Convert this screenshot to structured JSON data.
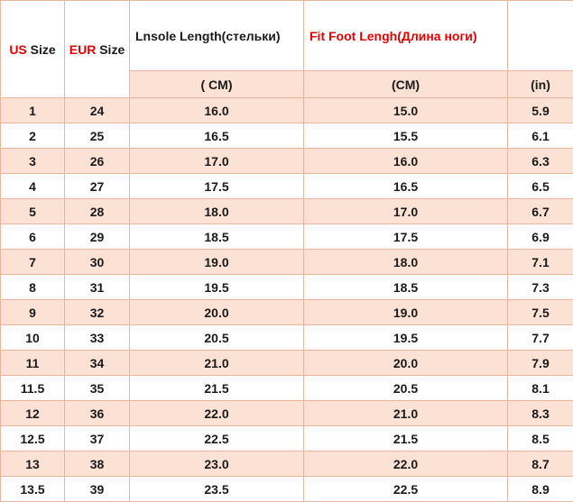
{
  "header": {
    "columns": [
      {
        "highlight": "US",
        "label": "Size"
      },
      {
        "highlight": "EUR",
        "label": "Size"
      },
      {
        "label": "Lnsole Length(стельки)"
      },
      {
        "highlight": "Fit Foot Lengh(Длина ноги)"
      },
      {}
    ],
    "units": [
      "( CM)",
      "(CM)",
      "(in)"
    ]
  },
  "table": {
    "rows": [
      [
        "1",
        "24",
        "16.0",
        "15.0",
        "5.9"
      ],
      [
        "2",
        "25",
        "16.5",
        "15.5",
        "6.1"
      ],
      [
        "3",
        "26",
        "17.0",
        "16.0",
        "6.3"
      ],
      [
        "4",
        "27",
        "17.5",
        "16.5",
        "6.5"
      ],
      [
        "5",
        "28",
        "18.0",
        "17.0",
        "6.7"
      ],
      [
        "6",
        "29",
        "18.5",
        "17.5",
        "6.9"
      ],
      [
        "7",
        "30",
        "19.0",
        "18.0",
        "7.1"
      ],
      [
        "8",
        "31",
        "19.5",
        "18.5",
        "7.3"
      ],
      [
        "9",
        "32",
        "20.0",
        "19.0",
        "7.5"
      ],
      [
        "10",
        "33",
        "20.5",
        "19.5",
        "7.7"
      ],
      [
        "11",
        "34",
        "21.0",
        "20.0",
        "7.9"
      ],
      [
        "11.5",
        "35",
        "21.5",
        "20.5",
        "8.1"
      ],
      [
        "12",
        "36",
        "22.0",
        "21.0",
        "8.3"
      ],
      [
        "12.5",
        "37",
        "22.5",
        "21.5",
        "8.5"
      ],
      [
        "13",
        "38",
        "23.0",
        "22.0",
        "8.7"
      ],
      [
        "13.5",
        "39",
        "23.5",
        "22.5",
        "8.9"
      ]
    ]
  }
}
